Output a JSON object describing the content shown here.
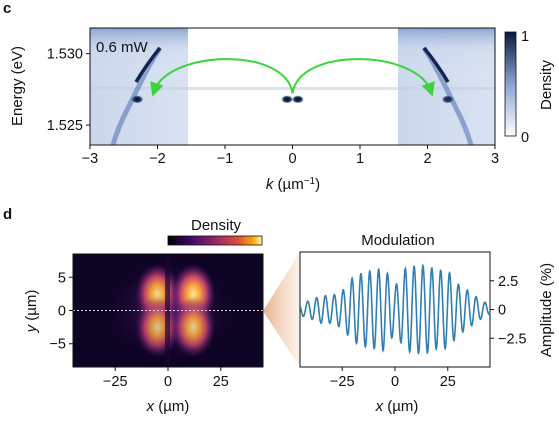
{
  "panel_c": {
    "label": "c",
    "power_label": "0.6 mW",
    "colorbar": {
      "label": "Density",
      "ticks": [
        "1",
        "0"
      ]
    }
  },
  "panel_d": {
    "label": "d",
    "density_title": "Density",
    "modulation_title": "Modulation"
  },
  "chart_data": [
    {
      "type": "heatmap",
      "panel": "c",
      "xlabel_parts": [
        "k",
        " (µm",
        "−1",
        ")"
      ],
      "ylabel": "Energy (eV)",
      "xlim": [
        -3,
        3
      ],
      "ylim": [
        1.5236,
        1.5318
      ],
      "xticks": [
        -3,
        -2,
        -1,
        0,
        1,
        2,
        3
      ],
      "xtick_labels": [
        "−3",
        "−2",
        "−1",
        "0",
        "1",
        "2",
        "3"
      ],
      "yticks": [
        1.525,
        1.53
      ],
      "ytick_labels": [
        "1.525",
        "1.530"
      ],
      "masked_k_range": [
        -1.6,
        1.6
      ],
      "condensate_energy": 1.5268,
      "bright_points": [
        {
          "k": -2.3,
          "energy": 1.5268,
          "density": 1.0
        },
        {
          "k": -0.08,
          "energy": 1.5268,
          "density": 1.0
        },
        {
          "k": 0.08,
          "energy": 1.5268,
          "density": 1.0
        },
        {
          "k": 2.3,
          "energy": 1.5268,
          "density": 0.9
        }
      ],
      "arrows": [
        {
          "from_k": 0,
          "to_k": -2.05,
          "color": "#3bd43b"
        },
        {
          "from_k": 0,
          "to_k": 2.05,
          "color": "#3bd43b"
        }
      ],
      "colorbar_range": [
        0,
        1
      ]
    },
    {
      "type": "heatmap",
      "panel": "d-left",
      "xlabel_parts": [
        "x",
        " (µm)"
      ],
      "ylabel_parts": [
        "y",
        " (µm)"
      ],
      "xlim": [
        -45,
        45
      ],
      "ylim": [
        -8.5,
        8.5
      ],
      "xticks": [
        -25,
        0,
        25
      ],
      "xtick_labels": [
        "−25",
        "0",
        "25"
      ],
      "yticks": [
        5,
        0,
        -5
      ],
      "ytick_labels": [
        "5",
        "0",
        "−5"
      ],
      "lobes": [
        {
          "x": -5,
          "y": 2.5,
          "peak": 0.95
        },
        {
          "x": -5,
          "y": -2.5,
          "peak": 0.85
        },
        {
          "x": 12,
          "y": 2.5,
          "peak": 1.0
        },
        {
          "x": 12,
          "y": -2.5,
          "peak": 0.9
        }
      ],
      "cut_line_y": 0,
      "colormap": "inferno"
    },
    {
      "type": "line",
      "panel": "d-right",
      "xlabel_parts": [
        "x",
        " (µm)"
      ],
      "ylabel": "Amplitude (%)",
      "xlim": [
        -45,
        45
      ],
      "ylim": [
        -5,
        5
      ],
      "xticks": [
        -25,
        0,
        25
      ],
      "xtick_labels": [
        "−25",
        "0",
        "25"
      ],
      "yticks": [
        2.5,
        0,
        -2.5
      ],
      "ytick_labels": [
        "2.5",
        "0",
        "−2.5"
      ],
      "series": [
        {
          "color": "#2f7fb0",
          "x": [
            -45,
            -40,
            -35,
            -30,
            -25,
            -20,
            -15,
            -10,
            -5,
            0,
            5,
            10,
            15,
            20,
            25,
            30,
            35,
            40,
            45
          ],
          "y": [
            -0.2,
            0.8,
            -1.2,
            1.0,
            -1.6,
            2.6,
            -3.0,
            3.2,
            -3.5,
            2.0,
            -3.6,
            3.6,
            -3.8,
            3.2,
            -3.4,
            2.0,
            -1.5,
            0.8,
            -0.2
          ],
          "envelope": [
            0.5,
            0.8,
            1.2,
            1.2,
            1.6,
            2.8,
            3.2,
            3.4,
            3.6,
            2.0,
            3.6,
            3.8,
            3.8,
            3.4,
            3.4,
            2.2,
            1.6,
            0.9,
            0.4
          ]
        }
      ]
    }
  ]
}
